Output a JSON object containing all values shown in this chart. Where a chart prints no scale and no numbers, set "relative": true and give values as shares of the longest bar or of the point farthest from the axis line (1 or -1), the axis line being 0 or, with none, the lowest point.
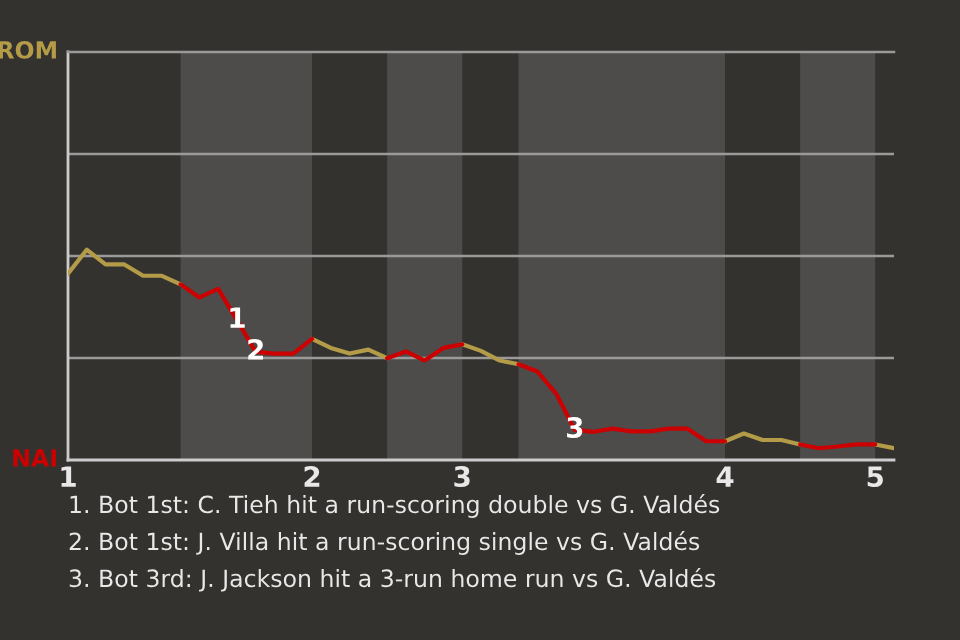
{
  "chart_data": {
    "type": "line",
    "relative": true,
    "categories": [
      "1",
      null,
      null,
      null,
      null,
      null,
      null,
      null,
      null,
      null,
      null,
      null,
      null,
      "2",
      null,
      null,
      null,
      null,
      null,
      null,
      null,
      "3",
      null,
      null,
      null,
      null,
      null,
      null,
      null,
      null,
      null,
      null,
      null,
      null,
      null,
      "4",
      null,
      null,
      null,
      null,
      null,
      null,
      null,
      "5",
      null
    ],
    "series": [
      {
        "color": "#b39b48",
        "values": [
          0.886,
          1,
          0.93,
          0.93,
          0.876,
          0.876,
          0.835,
          null,
          null,
          null,
          null,
          null,
          null,
          0.576,
          0.533,
          0.506,
          0.525,
          0.484,
          null,
          null,
          null,
          0.55,
          0.519,
          0.473,
          0.455,
          null,
          null,
          null,
          null,
          null,
          null,
          null,
          null,
          null,
          null,
          0.089,
          0.126,
          0.095,
          0.095,
          0.074,
          null,
          null,
          null,
          0.074,
          0.056
        ]
      },
      {
        "color": "#cc0000",
        "values": [
          null,
          null,
          null,
          null,
          null,
          null,
          0.835,
          0.773,
          0.814,
          0.665,
          0.514,
          0.506,
          0.506,
          0.576,
          null,
          null,
          null,
          0.484,
          0.516,
          0.473,
          0.533,
          0.55,
          null,
          null,
          0.455,
          0.421,
          0.316,
          0.143,
          0.134,
          0.149,
          0.136,
          0.136,
          0.149,
          0.149,
          0.089,
          0.089,
          null,
          null,
          null,
          0.074,
          0.056,
          0.064,
          0.074,
          0.074,
          null
        ]
      }
    ],
    "ref_lines": [
      {
        "axis": "y",
        "value": 0.485,
        "color": "#9a9a9a"
      },
      {
        "axis": "y",
        "value": 0.97,
        "color": "#9a9a9a"
      },
      {
        "axis": "y",
        "value": 1.455,
        "color": "#9a9a9a"
      }
    ],
    "annotations": [
      "ROM",
      "NAI",
      {
        "text": "1",
        "y": 0.665
      },
      {
        "text": "2",
        "y": 0.514
      },
      {
        "text": "3",
        "y": 0.143
      },
      "1. Bot 1st: C. Tieh hit a run-scoring double vs G. Valdés",
      "2. Bot 1st: J. Villa hit a run-scoring single vs G. Valdés",
      "3. Bot 3rd: J. Jackson hit a 3-run home run vs G. Valdés"
    ]
  }
}
